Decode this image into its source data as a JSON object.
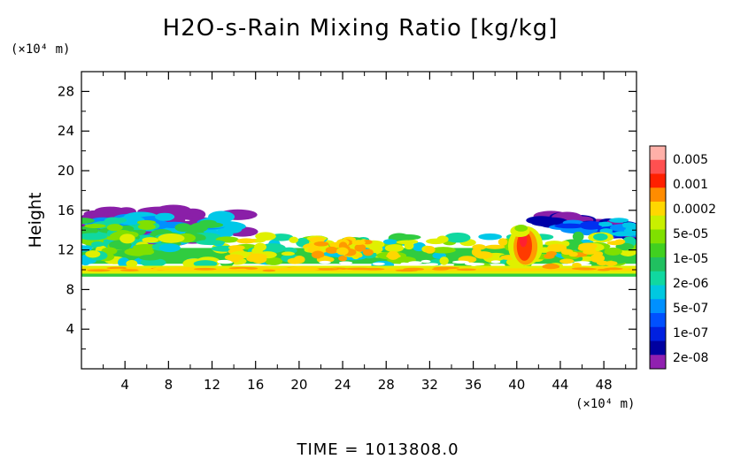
{
  "chart_data": {
    "type": "heatmap",
    "title": "H2O-s-Rain Mixing Ratio [kg/kg]",
    "ylabel": "Height",
    "xlabel": "",
    "x_unit": "(×10⁴ m)",
    "y_unit": "(×10⁴ m)",
    "time_label": "TIME  =  1013808.0",
    "xlim": [
      0,
      51
    ],
    "ylim": [
      0,
      30
    ],
    "x_ticks": [
      4,
      8,
      12,
      16,
      20,
      24,
      28,
      32,
      36,
      40,
      44,
      48
    ],
    "y_ticks": [
      4,
      8,
      12,
      16,
      20,
      24,
      28
    ],
    "colorbar": {
      "labels": [
        "0.005",
        "0.001",
        "0.0002",
        "5e-05",
        "1e-05",
        "2e-06",
        "5e-07",
        "1e-07",
        "2e-08"
      ],
      "colors": [
        "#ffb0a8",
        "#ff5050",
        "#ff2000",
        "#ff8c00",
        "#ffd700",
        "#c8f000",
        "#80e000",
        "#40d020",
        "#20c060",
        "#10d8a0",
        "#00c8e0",
        "#0090ff",
        "#0050ff",
        "#0020e0",
        "#0000a0",
        "#9020b0"
      ]
    },
    "features": [
      {
        "name": "base-layer",
        "x_range": [
          0,
          51
        ],
        "y_range": [
          9.3,
          10.6
        ],
        "level": "5e-05"
      },
      {
        "name": "mid-layer",
        "x_range": [
          0,
          51
        ],
        "y_range": [
          10.6,
          13.5
        ],
        "level": "1e-05"
      },
      {
        "name": "left-anvil",
        "x_range": [
          0,
          16
        ],
        "y_range": [
          12.5,
          16.2
        ],
        "level": "2e-06"
      },
      {
        "name": "hotspot-24",
        "x_range": [
          22,
          26
        ],
        "y_range": [
          10.5,
          13.5
        ],
        "level": "0.0002"
      },
      {
        "name": "core-41",
        "x_range": [
          39.5,
          42
        ],
        "y_range": [
          10,
          14.5
        ],
        "level": "0.001"
      },
      {
        "name": "right-anvil",
        "x_range": [
          40,
          51
        ],
        "y_range": [
          12.5,
          15.5
        ],
        "level": "5e-07"
      }
    ]
  }
}
